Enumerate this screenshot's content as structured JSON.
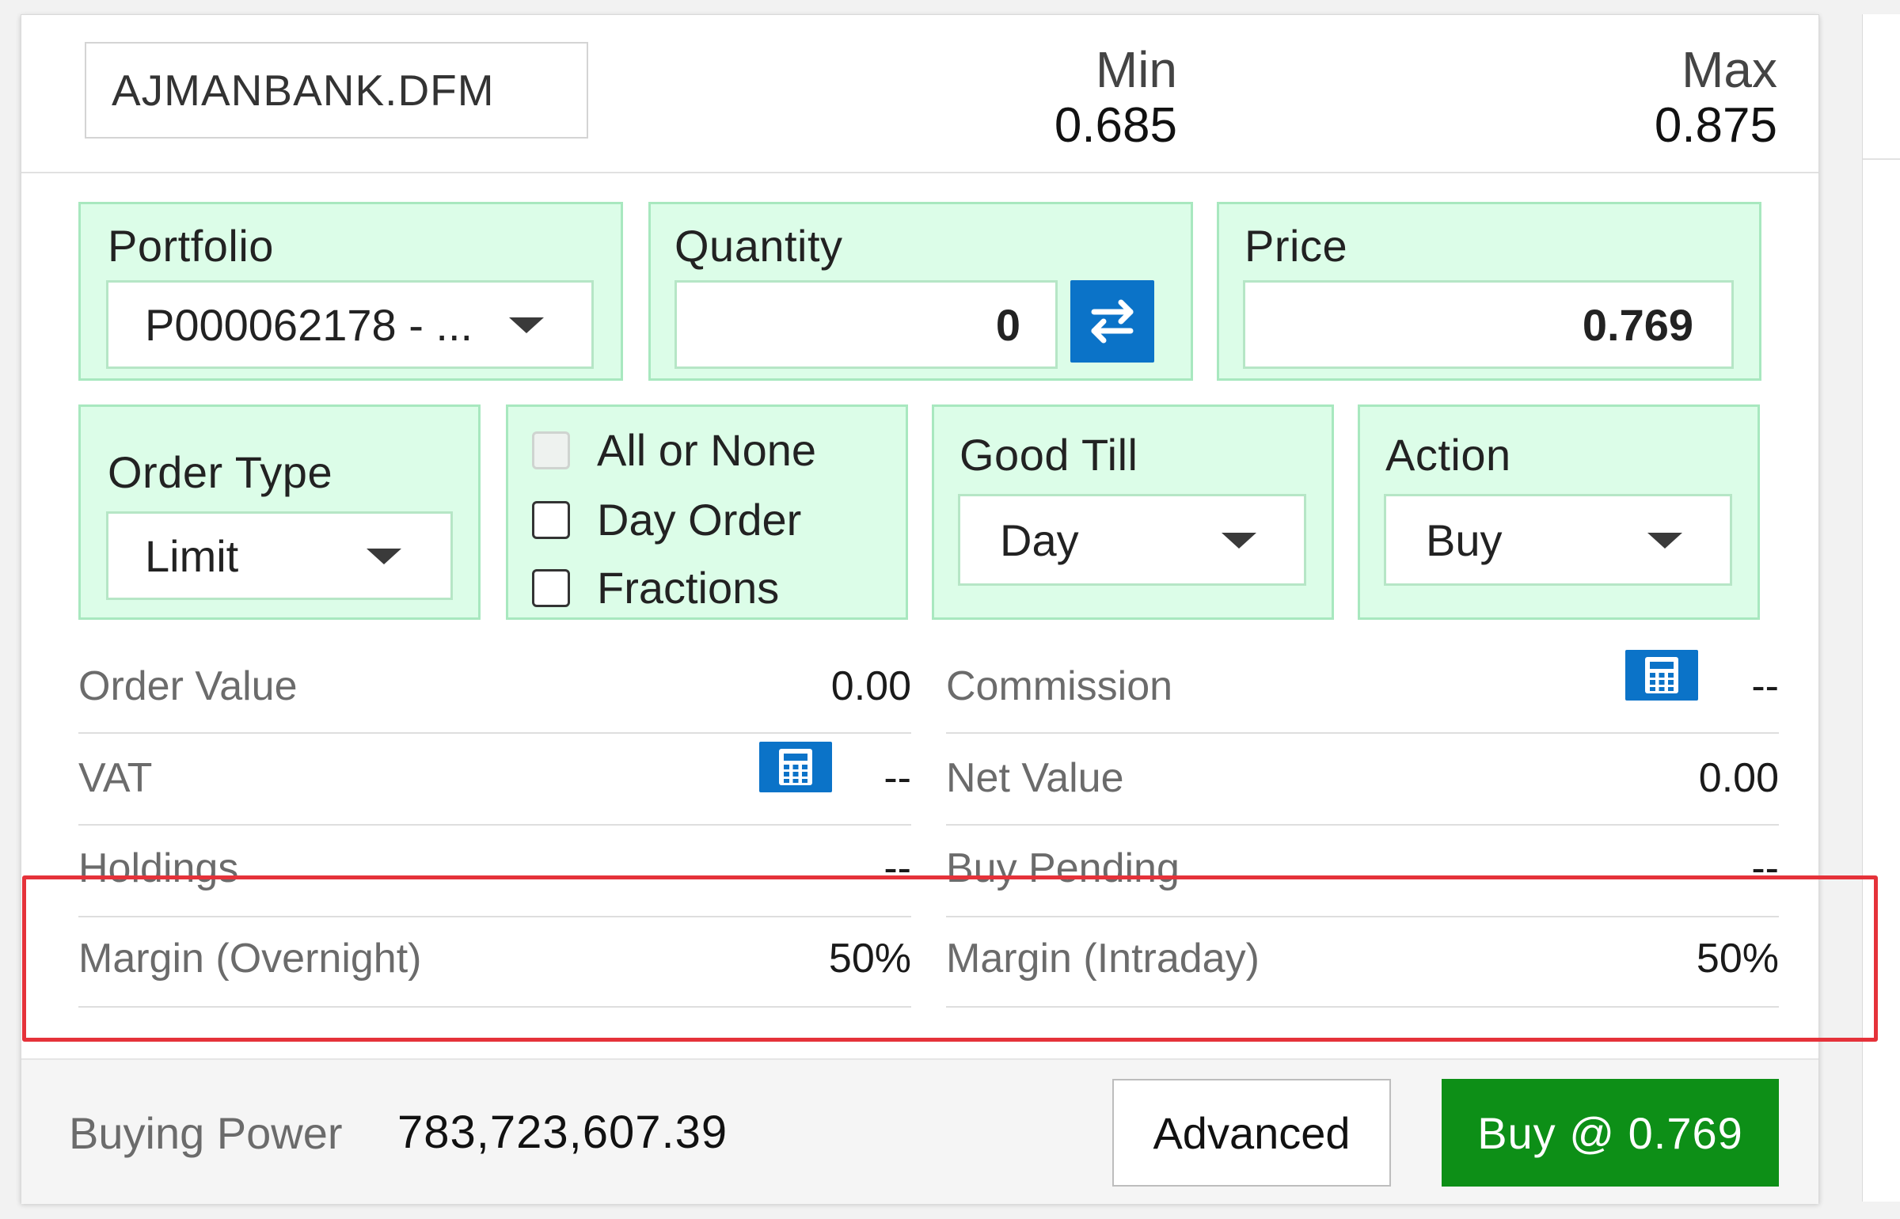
{
  "header": {
    "symbol": "AJMANBANK.DFM",
    "min_label": "Min",
    "min_value": "0.685",
    "max_label": "Max",
    "max_value": "0.875"
  },
  "portfolio": {
    "label": "Portfolio",
    "value": "P000062178 - ..."
  },
  "quantity": {
    "label": "Quantity",
    "value": "0"
  },
  "price": {
    "label": "Price",
    "value": "0.769"
  },
  "order_type": {
    "label": "Order Type",
    "value": "Limit"
  },
  "options": {
    "all_or_none": "All or None",
    "day_order": "Day Order",
    "fractions": "Fractions"
  },
  "good_till": {
    "label": "Good Till",
    "value": "Day"
  },
  "action": {
    "label": "Action",
    "value": "Buy"
  },
  "info": {
    "order_value_label": "Order Value",
    "order_value": "0.00",
    "commission_label": "Commission",
    "commission": "--",
    "vat_label": "VAT",
    "vat": "--",
    "net_value_label": "Net Value",
    "net_value": "0.00",
    "holdings_label": "Holdings",
    "holdings": "--",
    "buy_pending_label": "Buy Pending",
    "buy_pending": "--",
    "margin_overnight_label": "Margin (Overnight)",
    "margin_overnight": "50%",
    "margin_intraday_label": "Margin (Intraday)",
    "margin_intraday": "50%"
  },
  "footer": {
    "buying_power_label": "Buying Power",
    "buying_power": "783,723,607.39",
    "advanced_label": "Advanced",
    "buy_label": "Buy @ 0.769"
  },
  "colors": {
    "group_bg": "#dcfde8",
    "group_border": "#a8e8bf",
    "accent_blue": "#0b73c8",
    "buy_green": "#0d8f17",
    "highlight_red": "#e5323a"
  },
  "icons": {
    "swap": "swap-arrows-icon",
    "calculator": "calculator-icon",
    "dropdown": "chevron-down-icon"
  }
}
